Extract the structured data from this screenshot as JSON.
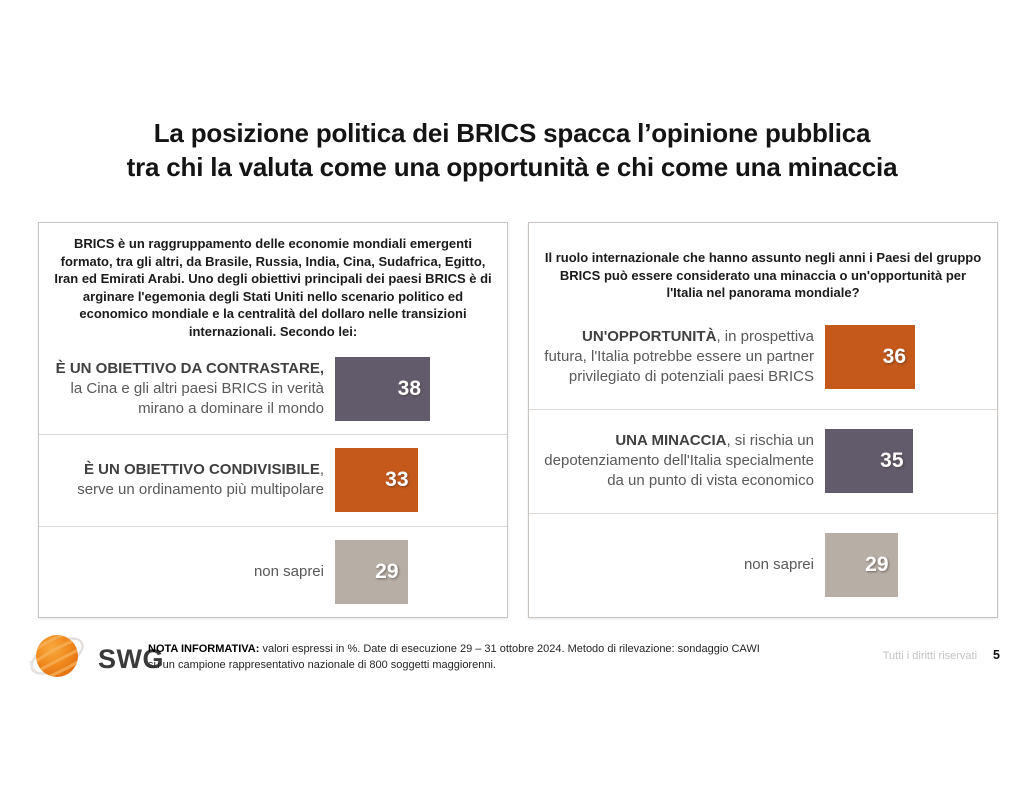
{
  "title": {
    "line1": "La posizione politica dei BRICS spacca l’opinione pubblica",
    "line2": "tra chi la valuta come una opportunità e chi come una minaccia"
  },
  "panels": [
    {
      "intro": "BRICS è un raggruppamento delle economie mondiali emergenti formato, tra gli altri, da Brasile, Russia, India, Cina, Sudafrica, Egitto, Iran ed Emirati Arabi. Uno degli obiettivi principali dei paesi BRICS è di arginare l'egemonia degli Stati Uniti nello scenario politico ed economico mondiale e la centralità del dollaro nelle transizioni internazionali. Secondo lei:",
      "rows": [
        {
          "label_bold": "È UN OBIETTIVO DA CONTRASTARE,",
          "label_rest": " la Cina e gli altri paesi BRICS in verità mirano a dominare il mondo",
          "value": 38,
          "color": "#625b6c"
        },
        {
          "label_bold": "È UN OBIETTIVO CONDIVISIBILE",
          "label_rest": ", serve un ordinamento più multipolare",
          "value": 33,
          "color": "#c5591b"
        },
        {
          "label_bold": "",
          "label_rest": "non saprei",
          "value": 29,
          "color": "#b7aea6"
        }
      ]
    },
    {
      "intro": "Il ruolo internazionale che hanno assunto negli anni i Paesi del gruppo BRICS può essere considerato una minaccia o un'opportunità per l'Italia nel panorama mondiale?",
      "rows": [
        {
          "label_bold": "UN'OPPORTUNITÀ",
          "label_rest": ", in prospettiva futura, l'Italia potrebbe essere un partner privilegiato di potenziali paesi BRICS",
          "value": 36,
          "color": "#c5591b"
        },
        {
          "label_bold": "UNA MINACCIA",
          "label_rest": ", si rischia un depotenziamento dell'Italia specialmente da un punto di vista economico",
          "value": 35,
          "color": "#625b6c"
        },
        {
          "label_bold": "",
          "label_rest": "non saprei",
          "value": 29,
          "color": "#b7aea6"
        }
      ]
    }
  ],
  "footer": {
    "logo_text": "SWG",
    "note_label": "NOTA INFORMATIVA:",
    "note_text": " valori espressi in %. Date di esecuzione 29 – 31 ottobre 2024. Metodo di rilevazione: sondaggio CAWI su un campione rappresentativo nazionale di 800 soggetti maggiorenni.",
    "rights": "Tutti i diritti riservati",
    "page_number": "5"
  },
  "colors": {
    "bar_purple": "#625b6c",
    "bar_orange": "#c5591b",
    "bar_gray": "#b7aea6",
    "logo_orange": "#ee821c"
  },
  "chart_data": [
    {
      "type": "bar",
      "orientation": "horizontal",
      "title": "BRICS è un raggruppamento delle economie mondiali emergenti formato, tra gli altri, da Brasile, Russia, India, Cina, Sudafrica, Egitto, Iran ed Emirati Arabi. Uno degli obiettivi principali dei paesi BRICS è di arginare l'egemonia degli Stati Uniti nello scenario politico ed economico mondiale e la centralità del dollaro nelle transizioni internazionali. Secondo lei:",
      "categories": [
        "È UN OBIETTIVO DA CONTRASTARE, la Cina e gli altri paesi BRICS in verità mirano a dominare il mondo",
        "È UN OBIETTIVO CONDIVISIBILE, serve un ordinamento più multipolare",
        "non saprei"
      ],
      "values": [
        38,
        33,
        29
      ],
      "unit": "%",
      "colors": [
        "#625b6c",
        "#c5591b",
        "#b7aea6"
      ],
      "data_labels": true,
      "xlim": [
        0,
        100
      ],
      "grid": false,
      "legend": false
    },
    {
      "type": "bar",
      "orientation": "horizontal",
      "title": "Il ruolo internazionale che hanno assunto negli anni i Paesi del gruppo BRICS può essere considerato una minaccia o un'opportunità per l'Italia nel panorama mondiale?",
      "categories": [
        "UN'OPPORTUNITÀ, in prospettiva futura, l'Italia potrebbe essere un partner privilegiato di potenziali paesi BRICS",
        "UNA MINACCIA, si rischia un depotenziamento dell'Italia specialmente da un punto di vista economico",
        "non saprei"
      ],
      "values": [
        36,
        35,
        29
      ],
      "unit": "%",
      "colors": [
        "#c5591b",
        "#625b6c",
        "#b7aea6"
      ],
      "data_labels": true,
      "xlim": [
        0,
        100
      ],
      "grid": false,
      "legend": false
    }
  ]
}
